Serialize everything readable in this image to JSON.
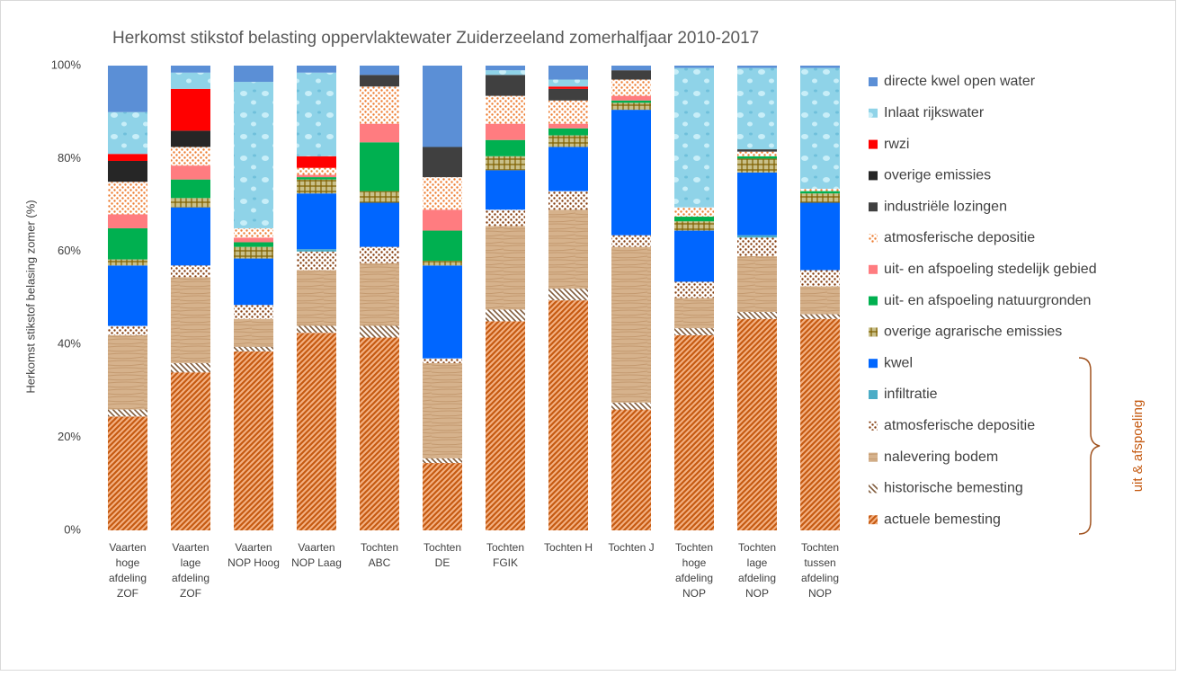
{
  "chart_data": {
    "type": "stacked_bar",
    "title": "Herkomst stikstof belasting oppervlaktewater Zuiderzeeland zomerhalfjaar 2010-2017",
    "y_label": "Herkomst stikstof belasing zomer (%)",
    "annotation": "uit & afspoeling",
    "categories": [
      "Vaarten hoge afdeling ZOF",
      "Vaarten lage afdeling ZOF",
      "Vaarten NOP Hoog",
      "Vaarten NOP Laag",
      "Tochten ABC",
      "Tochten DE",
      "Tochten FGIK",
      "Tochten H",
      "Tochten J",
      "Tochten hoge afdeling NOP",
      "Tochten lage afdeling NOP",
      "Tochten tussen afdeling NOP"
    ],
    "ylim": [
      0,
      100
    ],
    "yticks": [
      {
        "value": 0,
        "label": "0%"
      },
      {
        "value": 20,
        "label": "20%"
      },
      {
        "value": 40,
        "label": "40%"
      },
      {
        "value": 60,
        "label": "60%"
      },
      {
        "value": 80,
        "label": "80%"
      },
      {
        "value": 100,
        "label": "100%"
      }
    ],
    "series": [
      {
        "name": "actuele bemesting",
        "color": "#c55a11",
        "pattern": "hatch",
        "values": [
          24.5,
          34,
          38.5,
          42.5,
          41.5,
          14.5,
          45,
          49.5,
          26,
          42,
          45.5,
          45.5
        ]
      },
      {
        "name": "historische bemesting",
        "color": "#7f5a3a",
        "pattern": "stripes",
        "values": [
          1.5,
          2,
          1,
          1.5,
          2.5,
          1,
          2.5,
          2.5,
          1.5,
          1.5,
          1.5,
          1
        ]
      },
      {
        "name": "nalevering bodem",
        "color": "#d6b28c",
        "pattern": "wood",
        "values": [
          16,
          18.5,
          6,
          12,
          13.5,
          20.5,
          18,
          17,
          33.5,
          6.5,
          12,
          6
        ]
      },
      {
        "name": "atmosferische depositie",
        "color": "#843c0c",
        "pattern": "dots",
        "values": [
          2,
          2.5,
          3,
          4,
          3.5,
          1,
          3.5,
          4,
          2.5,
          3.5,
          4,
          3.5
        ]
      },
      {
        "name": "infiltratie",
        "color": "#4bacc6",
        "pattern": "solid",
        "values": [
          0,
          0,
          0,
          0.5,
          0,
          0,
          0,
          0,
          0,
          0,
          0.5,
          0
        ]
      },
      {
        "name": "kwel",
        "color": "#0066ff",
        "pattern": "solid",
        "values": [
          13,
          12.5,
          10,
          12,
          9.5,
          20,
          8.5,
          9.5,
          27,
          11,
          13.5,
          14.5
        ]
      },
      {
        "name": "overige agrarische emissies",
        "color": "#7f6000",
        "pattern": "grid",
        "values": [
          1.3,
          2,
          2.5,
          3,
          2.5,
          1,
          3,
          2.5,
          1.5,
          2,
          3,
          2
        ]
      },
      {
        "name": "uit- en afspoeling natuurgronden",
        "color": "#00b050",
        "pattern": "solid",
        "values": [
          6.7,
          4,
          1,
          0.5,
          10.5,
          6.5,
          3.5,
          1.5,
          0.5,
          1,
          0.5,
          0.5
        ]
      },
      {
        "name": "uit- en afspoeling stedelijk gebied",
        "color": "#ff7c80",
        "pattern": "solid",
        "values": [
          3,
          3,
          1,
          0.5,
          4,
          4.5,
          3.5,
          1,
          1,
          0,
          0,
          0
        ]
      },
      {
        "name": "atmosferische depositie",
        "color": "#ed7d31",
        "pattern": "dots",
        "values": [
          7,
          4,
          2,
          1.5,
          8,
          7,
          6,
          5,
          3.5,
          2,
          1,
          0.5
        ]
      },
      {
        "name": "industriële lozingen",
        "color": "#404040",
        "pattern": "solid",
        "values": [
          0,
          0,
          0,
          0,
          2.5,
          6.5,
          4.5,
          2.5,
          2,
          0,
          0.5,
          0
        ]
      },
      {
        "name": "overige emissies",
        "color": "#262626",
        "pattern": "solid",
        "values": [
          4.5,
          3.5,
          0,
          0,
          0,
          0,
          0,
          0,
          0,
          0,
          0,
          0
        ]
      },
      {
        "name": "rwzi",
        "color": "#ff0000",
        "pattern": "solid",
        "values": [
          1.5,
          9,
          0,
          2.5,
          0,
          0,
          0,
          0.5,
          0,
          0,
          0,
          0
        ]
      },
      {
        "name": "Inlaat rijkswater",
        "color": "#8fd3e8",
        "pattern": "water",
        "values": [
          9,
          3.5,
          31.5,
          18,
          0,
          0,
          1,
          1.5,
          0,
          30,
          17.5,
          26
        ]
      },
      {
        "name": "directe kwel open water",
        "color": "#5b8fd6",
        "pattern": "solid",
        "values": [
          10,
          1.5,
          3.5,
          1.5,
          2,
          17.5,
          1,
          3,
          1,
          0.5,
          0.5,
          0.5
        ]
      }
    ]
  }
}
